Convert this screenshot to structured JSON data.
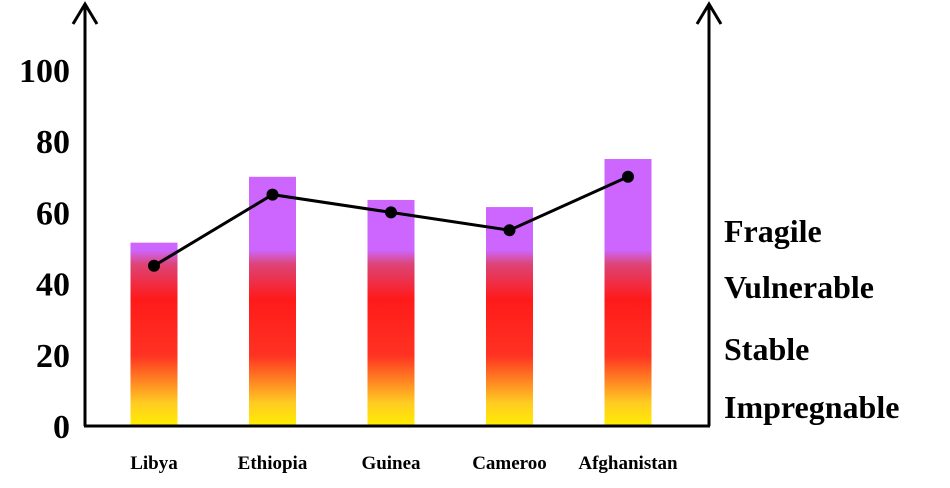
{
  "chart_data": {
    "type": "bar",
    "categories": [
      "Libya",
      "Ethiopia",
      "Guinea",
      "Cameroo",
      "Afghanistan"
    ],
    "series": [
      {
        "type": "bar",
        "values": [
          51.5,
          70,
          63.5,
          61.5,
          75
        ]
      },
      {
        "type": "line",
        "values": [
          45,
          65,
          60,
          55,
          70
        ]
      }
    ],
    "yticks": [
      "0",
      "20",
      "40",
      "60",
      "80",
      "100"
    ],
    "ylim": [
      0,
      110
    ],
    "zones": [
      "Fragile",
      "Vulnerable",
      "Stable",
      "Impregnable"
    ],
    "grid": false,
    "legend": "none",
    "colors": {
      "bar_top": "#cc66ff",
      "bar_mid": "#ff1a1a",
      "bar_bottom": "#ffee00",
      "line": "#000000",
      "marker": "#000000"
    }
  }
}
